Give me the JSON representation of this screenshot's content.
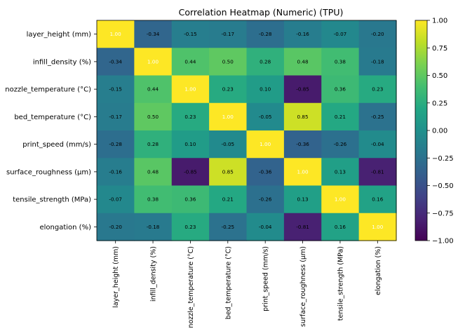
{
  "chart_data": {
    "type": "heatmap",
    "title": "Correlation Heatmap (Numeric) (TPU)",
    "rows": [
      "layer_height (mm)",
      "infill_density (%)",
      "nozzle_temperature (°C)",
      "bed_temperature (°C)",
      "print_speed (mm/s)",
      "surface_roughness (µm)",
      "tensile_strength (MPa)",
      "elongation (%)"
    ],
    "columns": [
      "layer_height (mm)",
      "infill_density (%)",
      "nozzle_temperature (°C)",
      "bed_temperature (°C)",
      "print_speed (mm/s)",
      "surface_roughness (µm)",
      "tensile_strength (MPa)",
      "elongation (%)"
    ],
    "values": [
      [
        1.0,
        -0.34,
        -0.15,
        -0.17,
        -0.28,
        -0.16,
        -0.07,
        -0.2
      ],
      [
        -0.34,
        1.0,
        0.44,
        0.5,
        0.28,
        0.48,
        0.38,
        -0.18
      ],
      [
        -0.15,
        0.44,
        1.0,
        0.23,
        0.1,
        -0.85,
        0.36,
        0.23
      ],
      [
        -0.17,
        0.5,
        0.23,
        1.0,
        -0.05,
        0.85,
        0.21,
        -0.25
      ],
      [
        -0.28,
        0.28,
        0.1,
        -0.05,
        1.0,
        -0.36,
        -0.26,
        -0.04
      ],
      [
        -0.16,
        0.48,
        -0.85,
        0.85,
        -0.36,
        1.0,
        0.13,
        -0.81
      ],
      [
        -0.07,
        0.38,
        0.36,
        0.21,
        -0.26,
        0.13,
        1.0,
        0.16
      ],
      [
        -0.2,
        -0.18,
        0.23,
        -0.25,
        -0.04,
        -0.81,
        0.16,
        1.0
      ]
    ],
    "colorbar": {
      "colormap": "viridis",
      "range": [
        -1.0,
        1.0
      ],
      "ticks": [
        1.0,
        0.75,
        0.5,
        0.25,
        0.0,
        -0.25,
        -0.5,
        -0.75,
        -1.0
      ],
      "tick_labels": [
        "1.00",
        "0.75",
        "0.50",
        "0.25",
        "0.00",
        "−0.25",
        "−0.50",
        "−0.75",
        "−1.00"
      ]
    },
    "annotations": true
  }
}
